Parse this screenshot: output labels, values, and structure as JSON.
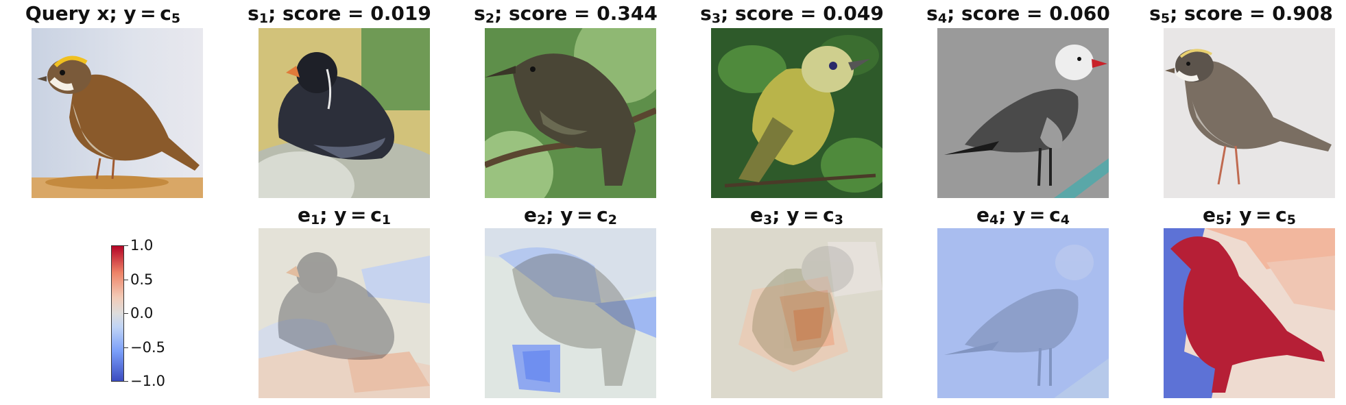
{
  "figure": {
    "row1": [
      {
        "title_main": "Query x; y = c",
        "title_sub": "5",
        "title_tail": "",
        "image": "white-throated sparrow on twigs"
      },
      {
        "title_main": "s",
        "title_sub": "1",
        "title_tail": "; score = 0.019",
        "image": "dark seabird (auklet) on rock"
      },
      {
        "title_main": "s",
        "title_sub": "2",
        "title_tail": "; score = 0.344",
        "image": "olive flycatcher on branch"
      },
      {
        "title_main": "s",
        "title_sub": "3",
        "title_tail": "; score = 0.049",
        "image": "yellow vireo among leaves"
      },
      {
        "title_main": "s",
        "title_sub": "4",
        "title_tail": "; score = 0.060",
        "image": "gray gull with red bill"
      },
      {
        "title_main": "s",
        "title_sub": "5",
        "title_tail": "; score = 0.908",
        "image": "white-throated sparrow on snow"
      }
    ],
    "row2": [
      {
        "title_main": "e",
        "title_sub": "1",
        "title_mid": "; y = c",
        "title_sub2": "1"
      },
      {
        "title_main": "e",
        "title_sub": "2",
        "title_mid": "; y = c",
        "title_sub2": "2"
      },
      {
        "title_main": "e",
        "title_sub": "3",
        "title_mid": "; y = c",
        "title_sub2": "3"
      },
      {
        "title_main": "e",
        "title_sub": "4",
        "title_mid": "; y = c",
        "title_sub2": "4"
      },
      {
        "title_main": "e",
        "title_sub": "5",
        "title_mid": "; y = c",
        "title_sub2": "5"
      }
    ]
  },
  "colorbar": {
    "ticks": [
      "1.0",
      "0.5",
      "0.0",
      "−0.5",
      "−1.0"
    ],
    "range": [
      -1.0,
      1.0
    ],
    "colormap": "coolwarm",
    "colors": {
      "low": "#3b4cc0",
      "mid": "#dddcdc",
      "high": "#b40426"
    }
  }
}
